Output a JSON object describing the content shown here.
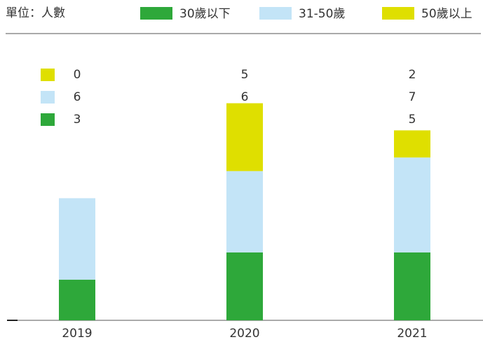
{
  "chart_data": {
    "type": "stacked_bar",
    "unit_label": "單位：人數",
    "categories": [
      "2019",
      "2020",
      "2021"
    ],
    "series": [
      {
        "name": "30歲以下",
        "color": "#2ea83a",
        "values": [
          3,
          5,
          5
        ]
      },
      {
        "name": "31-50歲",
        "color": "#c3e4f7",
        "values": [
          6,
          6,
          7
        ]
      },
      {
        "name": "50歲以上",
        "color": "#dfdf00",
        "values": [
          0,
          5,
          2
        ]
      }
    ]
  }
}
